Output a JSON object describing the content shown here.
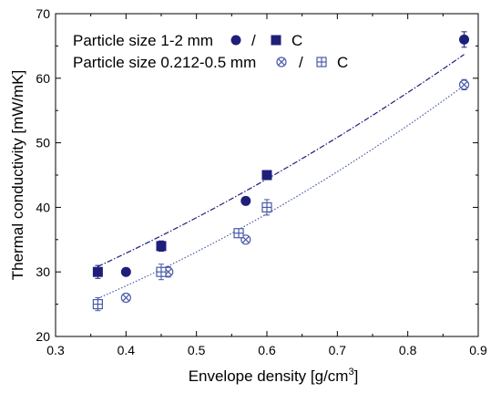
{
  "chart_data": {
    "type": "scatter",
    "xlabel": "Envelope density [g/cm",
    "xlabel_superscript": "3",
    "xlabel_suffix": "]",
    "ylabel": "Thermal conductivity [mW/mK]",
    "xlim": [
      0.3,
      0.9
    ],
    "ylim": [
      20,
      70
    ],
    "x_ticks": [
      "0.3",
      "0.4",
      "0.5",
      "0.6",
      "0.7",
      "0.8",
      "0.9"
    ],
    "y_ticks": [
      "20",
      "30",
      "40",
      "50",
      "60",
      "70"
    ],
    "grid": false,
    "legend_position": "top-left",
    "legend": [
      {
        "label": "Particle size 1-2 mm",
        "separator": "/",
        "compressed_label": "C"
      },
      {
        "label": "Particle size 0.212-0.5 mm",
        "separator": "/",
        "compressed_label": "C"
      }
    ],
    "series": [
      {
        "marker": "filled-circle",
        "color": "#1f1f7a",
        "points": [
          {
            "x": 0.4,
            "y": 30,
            "err": 0.6
          },
          {
            "x": 0.57,
            "y": 41,
            "err": 0.6
          },
          {
            "x": 0.88,
            "y": 66,
            "err": 1.2
          }
        ]
      },
      {
        "marker": "filled-square",
        "color": "#1f1f7a",
        "points": [
          {
            "x": 0.36,
            "y": 30,
            "err": 1.0
          },
          {
            "x": 0.45,
            "y": 34,
            "err": 0.8
          },
          {
            "x": 0.6,
            "y": 45,
            "err": 0.5
          }
        ]
      },
      {
        "marker": "crossed-circle",
        "color": "#4a5aa8",
        "points": [
          {
            "x": 0.4,
            "y": 26,
            "err": 0.6
          },
          {
            "x": 0.46,
            "y": 30,
            "err": 0.8
          },
          {
            "x": 0.57,
            "y": 35,
            "err": 0.6
          },
          {
            "x": 0.88,
            "y": 59,
            "err": 0.8
          }
        ]
      },
      {
        "marker": "crossed-square",
        "color": "#4a5aa8",
        "points": [
          {
            "x": 0.36,
            "y": 25,
            "err": 1.0
          },
          {
            "x": 0.45,
            "y": 30,
            "err": 1.2
          },
          {
            "x": 0.56,
            "y": 36,
            "err": 0.5
          },
          {
            "x": 0.6,
            "y": 40,
            "err": 1.2
          }
        ]
      }
    ],
    "fits": [
      {
        "style": "dash-dot",
        "color": "#1f1f7a",
        "x_range": [
          0.36,
          0.88
        ],
        "coefficients": [
          15.7,
          33.4,
          24.0
        ]
      },
      {
        "style": "dotted",
        "color": "#4a5aa8",
        "x_range": [
          0.36,
          0.88
        ],
        "coefficients": [
          13.1,
          24.2,
          31.6
        ]
      }
    ]
  }
}
